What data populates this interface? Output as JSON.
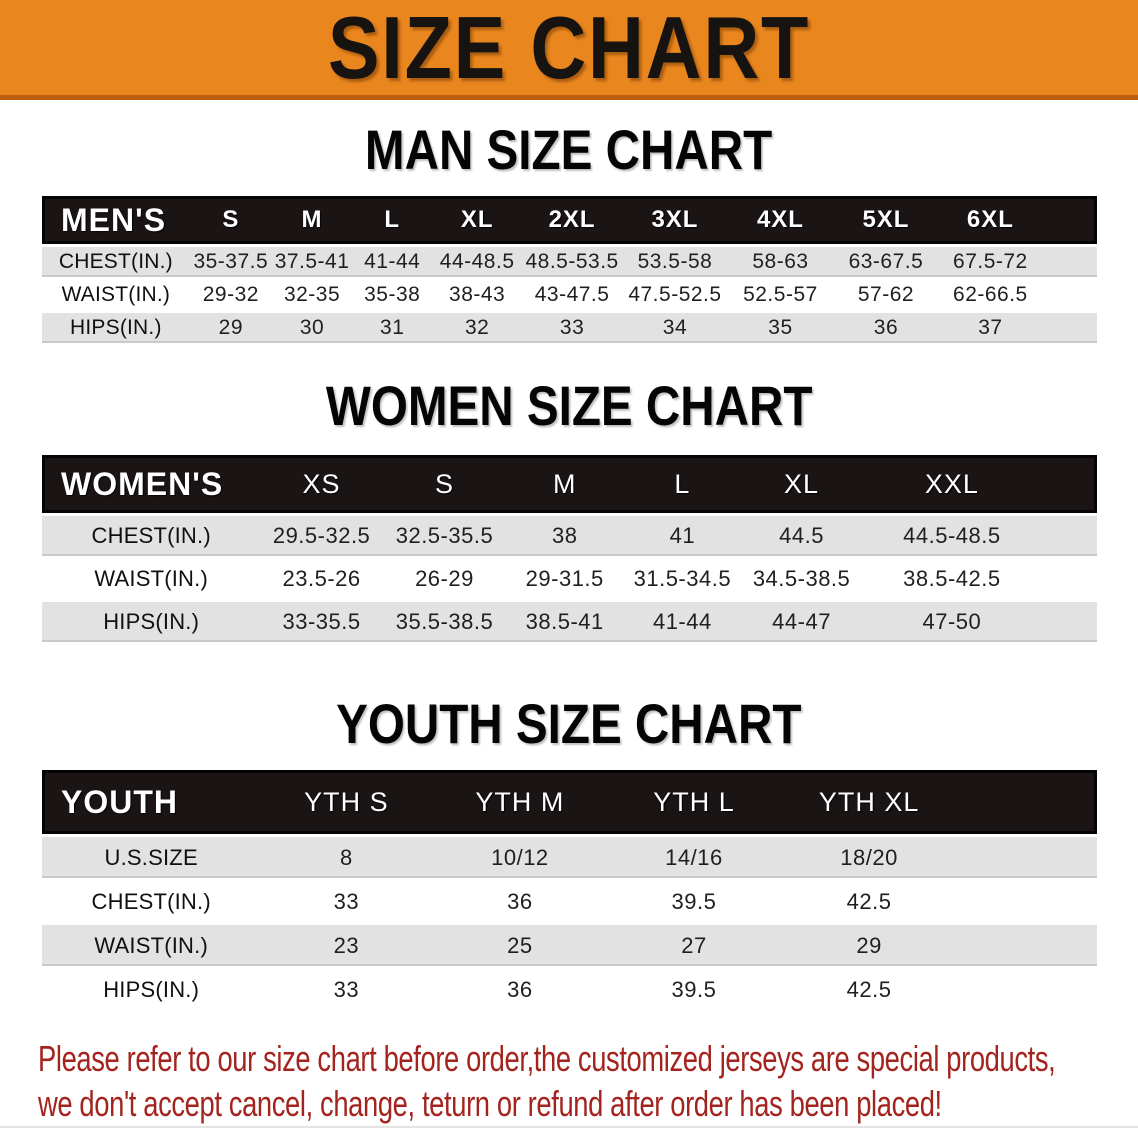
{
  "banner": {
    "title": "SIZE CHART",
    "bg_color": "#EA861E",
    "border_color": "#BD5D10"
  },
  "sections": [
    {
      "id": "men",
      "title": "MAN SIZE CHART",
      "corner": "MEN'S",
      "columns": [
        "S",
        "M",
        "L",
        "XL",
        "2XL",
        "3XL",
        "4XL",
        "5XL",
        "6XL"
      ],
      "rows": [
        {
          "label": "CHEST(IN.)",
          "values": [
            "35-37.5",
            "37.5-41",
            "41-44",
            "44-48.5",
            "48.5-53.5",
            "53.5-58",
            "58-63",
            "63-67.5",
            "67.5-72"
          ]
        },
        {
          "label": "WAIST(IN.)",
          "values": [
            "29-32",
            "32-35",
            "35-38",
            "38-43",
            "43-47.5",
            "47.5-52.5",
            "52.5-57",
            "57-62",
            "62-66.5"
          ]
        },
        {
          "label": "HIPS(IN.)",
          "values": [
            "29",
            "30",
            "31",
            "32",
            "33",
            "34",
            "35",
            "36",
            "37"
          ]
        }
      ]
    },
    {
      "id": "women",
      "title": "WOMEN SIZE CHART",
      "corner": "WOMEN'S",
      "columns": [
        "XS",
        "S",
        "M",
        "L",
        "XL",
        "XXL"
      ],
      "rows": [
        {
          "label": "CHEST(IN.)",
          "values": [
            "29.5-32.5",
            "32.5-35.5",
            "38",
            "41",
            "44.5",
            "44.5-48.5"
          ]
        },
        {
          "label": "WAIST(IN.)",
          "values": [
            "23.5-26",
            "26-29",
            "29-31.5",
            "31.5-34.5",
            "34.5-38.5",
            "38.5-42.5"
          ]
        },
        {
          "label": "HIPS(IN.)",
          "values": [
            "33-35.5",
            "35.5-38.5",
            "38.5-41",
            "41-44",
            "44-47",
            "47-50"
          ]
        }
      ]
    },
    {
      "id": "youth",
      "title": "YOUTH SIZE CHART",
      "corner": "YOUTH",
      "columns": [
        "YTH S",
        "YTH M",
        "YTH L",
        "YTH XL"
      ],
      "rows": [
        {
          "label": "U.S.SIZE",
          "values": [
            "8",
            "10/12",
            "14/16",
            "18/20"
          ]
        },
        {
          "label": "CHEST(IN.)",
          "values": [
            "33",
            "36",
            "39.5",
            "42.5"
          ]
        },
        {
          "label": "WAIST(IN.)",
          "values": [
            "23",
            "25",
            "27",
            "29"
          ]
        },
        {
          "label": "HIPS(IN.)",
          "values": [
            "33",
            "36",
            "39.5",
            "42.5"
          ]
        }
      ]
    }
  ],
  "disclaimer": {
    "line1": "Please refer to our size chart before order,the customized jerseys are special products,",
    "line2": "we don't accept cancel, change, teturn or refund after order has been placed!",
    "color": "#A3241F"
  },
  "row_colors": {
    "stripe": "#e2e2e2",
    "plain": "#ffffff",
    "header_bar": "#1a1414"
  }
}
